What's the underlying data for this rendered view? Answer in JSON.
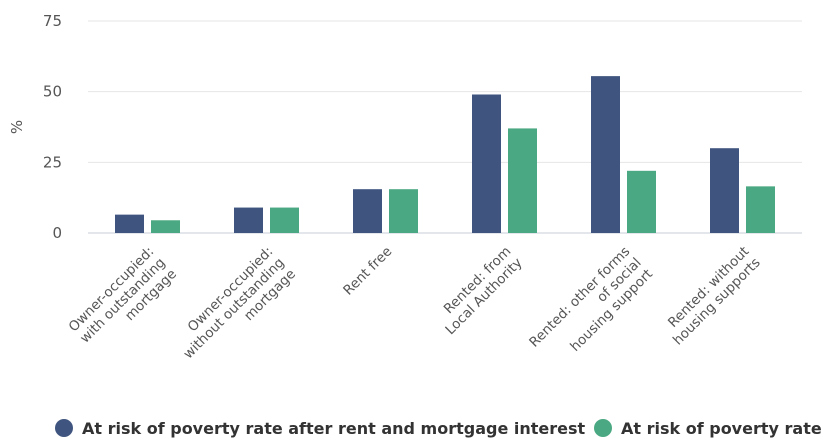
{
  "chart_data": {
    "type": "bar",
    "title": "",
    "xlabel": "",
    "ylabel": "%",
    "ylim": [
      0,
      75
    ],
    "yticks": [
      0,
      25,
      50,
      75
    ],
    "grid": true,
    "legend_position": "bottom",
    "categories": [
      [
        "Owner-occupied:",
        "with outstanding",
        "mortgage"
      ],
      [
        "Owner-occupied:",
        "without outstanding",
        "mortgage"
      ],
      [
        "Rent free"
      ],
      [
        "Rented: from",
        "Local Authority"
      ],
      [
        "Rented: other forms",
        "of social",
        "housing support"
      ],
      [
        "Rented: without",
        "housing supports"
      ]
    ],
    "series": [
      {
        "name": "At risk of poverty rate after rent and mortgage interest",
        "color": "#3f5580",
        "values": [
          6.5,
          9.0,
          15.5,
          49.0,
          55.5,
          30.0
        ]
      },
      {
        "name": "At risk of poverty rate",
        "color": "#4aa882",
        "values": [
          4.5,
          9.0,
          15.5,
          37.0,
          22.0,
          16.5
        ]
      }
    ]
  }
}
